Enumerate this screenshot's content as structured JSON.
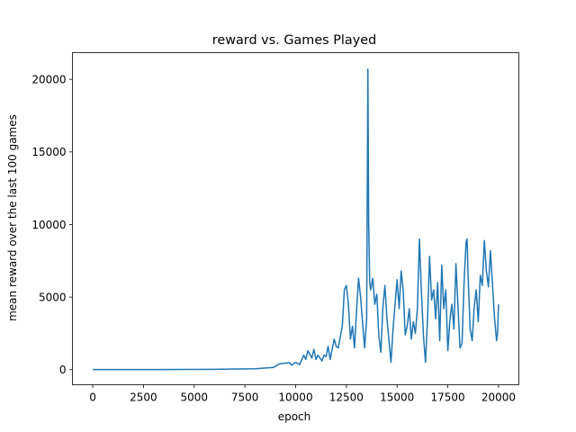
{
  "chart_data": {
    "type": "line",
    "title": "reward vs. Games Played",
    "xlabel": "epoch",
    "ylabel": "mean reward over the last 100 games",
    "xlim": [
      -1000,
      21000
    ],
    "ylim": [
      -1040,
      21840
    ],
    "xticks": [
      0,
      2500,
      5000,
      7500,
      10000,
      12500,
      15000,
      17500,
      20000
    ],
    "yticks": [
      0,
      5000,
      10000,
      15000,
      20000
    ],
    "grid": false,
    "series": [
      {
        "color": "#1f77b4",
        "points": [
          [
            0,
            5
          ],
          [
            3000,
            8
          ],
          [
            6000,
            20
          ],
          [
            8000,
            60
          ],
          [
            8900,
            150
          ],
          [
            9200,
            400
          ],
          [
            9500,
            450
          ],
          [
            9700,
            480
          ],
          [
            9800,
            300
          ],
          [
            10000,
            500
          ],
          [
            10200,
            350
          ],
          [
            10400,
            1000
          ],
          [
            10500,
            700
          ],
          [
            10600,
            1300
          ],
          [
            10800,
            800
          ],
          [
            10900,
            1400
          ],
          [
            11000,
            700
          ],
          [
            11100,
            1000
          ],
          [
            11300,
            600
          ],
          [
            11400,
            1000
          ],
          [
            11500,
            900
          ],
          [
            11600,
            1600
          ],
          [
            11700,
            700
          ],
          [
            11900,
            2100
          ],
          [
            12000,
            1600
          ],
          [
            12100,
            1500
          ],
          [
            12300,
            3000
          ],
          [
            12400,
            5500
          ],
          [
            12500,
            5800
          ],
          [
            12600,
            4500
          ],
          [
            12700,
            2100
          ],
          [
            12800,
            3000
          ],
          [
            12900,
            1500
          ],
          [
            13000,
            4000
          ],
          [
            13100,
            6300
          ],
          [
            13200,
            5000
          ],
          [
            13300,
            3200
          ],
          [
            13400,
            1500
          ],
          [
            13500,
            3500
          ],
          [
            13560,
            20700
          ],
          [
            13600,
            10000
          ],
          [
            13650,
            6000
          ],
          [
            13700,
            5500
          ],
          [
            13800,
            6300
          ],
          [
            13900,
            4500
          ],
          [
            14000,
            5200
          ],
          [
            14100,
            2300
          ],
          [
            14200,
            1200
          ],
          [
            14300,
            4300
          ],
          [
            14400,
            5800
          ],
          [
            14500,
            3500
          ],
          [
            14600,
            2000
          ],
          [
            14700,
            500
          ],
          [
            14800,
            2800
          ],
          [
            14900,
            4500
          ],
          [
            15000,
            6200
          ],
          [
            15100,
            4200
          ],
          [
            15200,
            6800
          ],
          [
            15300,
            5500
          ],
          [
            15400,
            2400
          ],
          [
            15500,
            3000
          ],
          [
            15600,
            4200
          ],
          [
            15700,
            2100
          ],
          [
            15800,
            3300
          ],
          [
            15900,
            2500
          ],
          [
            16000,
            4200
          ],
          [
            16100,
            9000
          ],
          [
            16200,
            5300
          ],
          [
            16300,
            2300
          ],
          [
            16400,
            500
          ],
          [
            16500,
            3500
          ],
          [
            16600,
            7800
          ],
          [
            16700,
            4800
          ],
          [
            16800,
            5500
          ],
          [
            16900,
            3500
          ],
          [
            17000,
            6000
          ],
          [
            17100,
            2000
          ],
          [
            17200,
            7200
          ],
          [
            17300,
            4200
          ],
          [
            17400,
            5500
          ],
          [
            17500,
            1300
          ],
          [
            17600,
            3400
          ],
          [
            17700,
            4500
          ],
          [
            17800,
            2800
          ],
          [
            17900,
            7300
          ],
          [
            18000,
            4400
          ],
          [
            18100,
            1500
          ],
          [
            18200,
            1800
          ],
          [
            18300,
            6000
          ],
          [
            18400,
            8800
          ],
          [
            18450,
            9000
          ],
          [
            18500,
            6400
          ],
          [
            18600,
            2800
          ],
          [
            18700,
            2000
          ],
          [
            18800,
            4300
          ],
          [
            18900,
            5500
          ],
          [
            19000,
            3300
          ],
          [
            19100,
            6500
          ],
          [
            19200,
            5800
          ],
          [
            19300,
            8900
          ],
          [
            19400,
            6800
          ],
          [
            19500,
            5700
          ],
          [
            19600,
            8200
          ],
          [
            19700,
            5900
          ],
          [
            19800,
            3600
          ],
          [
            19900,
            2000
          ],
          [
            19950,
            2500
          ],
          [
            20000,
            4500
          ]
        ]
      }
    ]
  }
}
